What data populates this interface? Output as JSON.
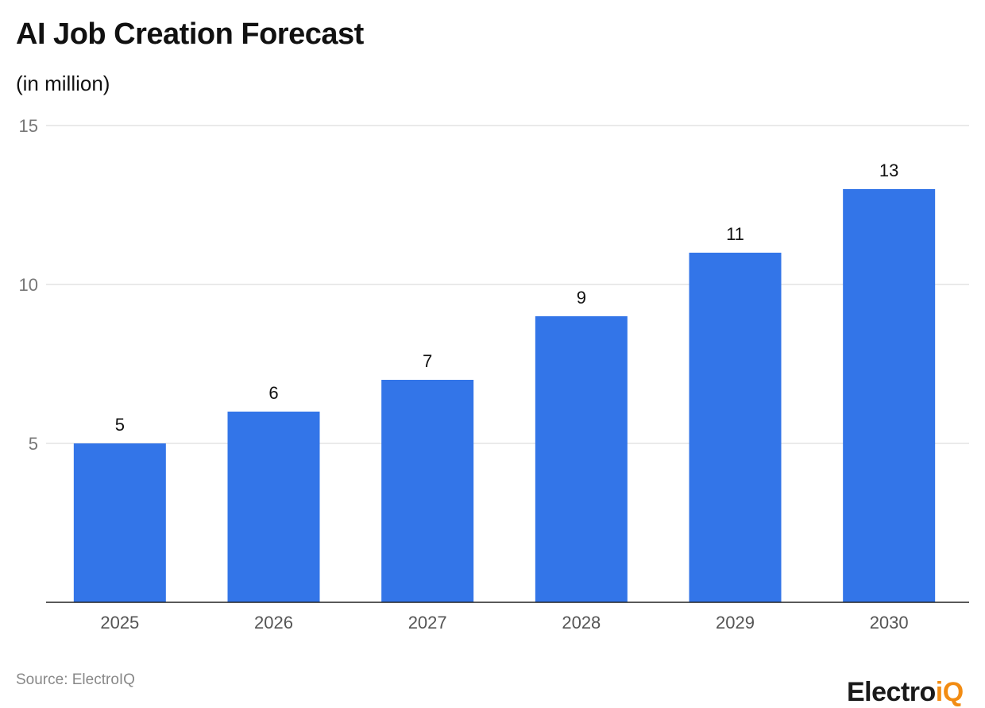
{
  "chart_data": {
    "type": "bar",
    "title": "AI Job Creation Forecast",
    "subtitle": "(in million)",
    "categories": [
      "2025",
      "2026",
      "2027",
      "2028",
      "2029",
      "2030"
    ],
    "values": [
      5,
      6,
      7,
      9,
      11,
      13
    ],
    "ylim": [
      0,
      15
    ],
    "yticks": [
      5,
      10,
      15
    ],
    "grid": true,
    "bar_color": "#3375e8",
    "data_labels": true
  },
  "source": "Source: ElectroIQ",
  "logo": {
    "main": "Electro",
    "accent": "iQ",
    "accent_color": "#f28c13"
  }
}
